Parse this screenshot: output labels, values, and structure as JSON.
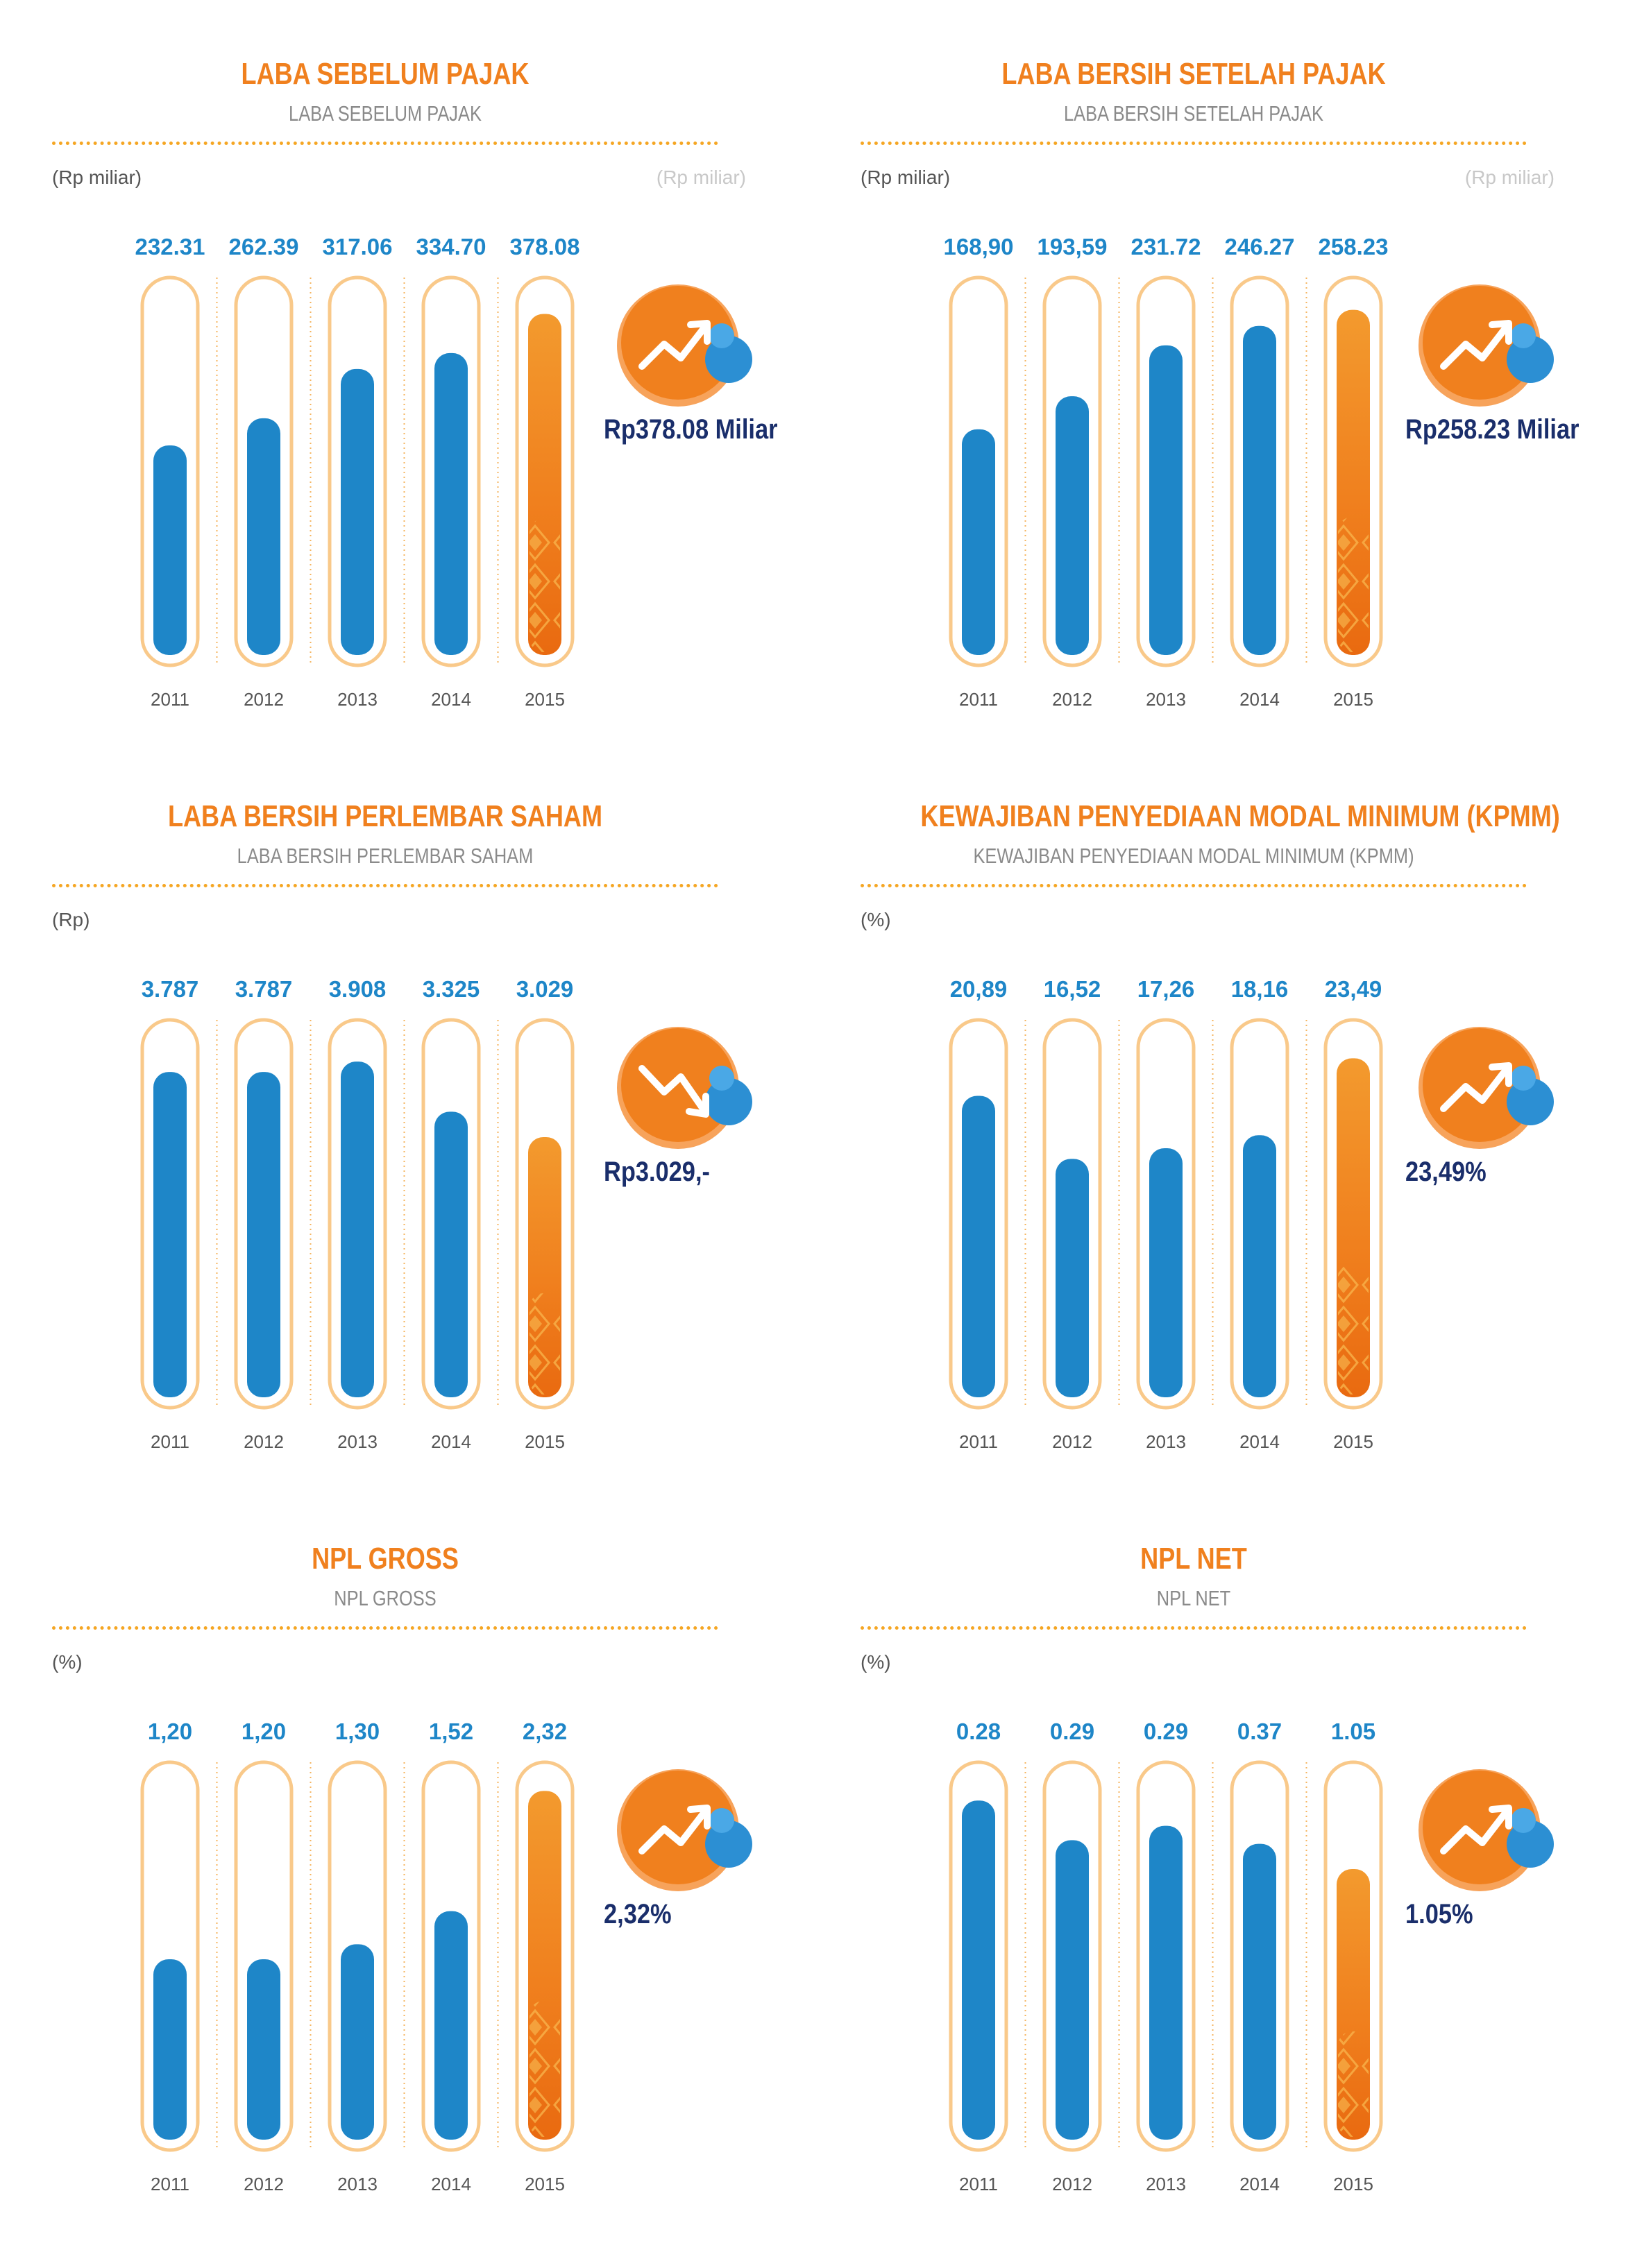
{
  "charts": [
    {
      "title": "LABA SEBELUM PAJAK",
      "subtitle": "LABA SEBELUM PAJAK",
      "unit_left": "(Rp miliar)",
      "unit_right": "(Rp miliar)",
      "callout": "Rp378.08 Miliar",
      "trend": "up",
      "chart_data": {
        "type": "bar",
        "title": "LABA SEBELUM PAJAK",
        "categories": [
          "2011",
          "2012",
          "2013",
          "2014",
          "2015"
        ],
        "values": [
          232.31,
          262.39,
          317.06,
          334.7,
          378.08
        ],
        "value_labels": [
          "232.31",
          "262.39",
          "317.06",
          "334.70",
          "378.08"
        ],
        "ylim": [
          0,
          400
        ],
        "highlight_index": 4
      }
    },
    {
      "title": "LABA BERSIH SETELAH PAJAK",
      "subtitle": "LABA BERSIH SETELAH PAJAK",
      "unit_left": "(Rp miliar)",
      "unit_right": "(Rp miliar)",
      "callout": "Rp258.23 Miliar",
      "trend": "up",
      "chart_data": {
        "type": "bar",
        "title": "LABA BERSIH SETELAH PAJAK",
        "categories": [
          "2011",
          "2012",
          "2013",
          "2014",
          "2015"
        ],
        "values": [
          168.9,
          193.59,
          231.72,
          246.27,
          258.23
        ],
        "value_labels": [
          "168,90",
          "193,59",
          "231.72",
          "246.27",
          "258.23"
        ],
        "ylim": [
          0,
          270
        ],
        "highlight_index": 4
      }
    },
    {
      "title": "LABA BERSIH PERLEMBAR SAHAM",
      "subtitle": "LABA BERSIH PERLEMBAR SAHAM",
      "unit_left": "(Rp)",
      "unit_right": "",
      "callout": "Rp3.029,-",
      "trend": "down",
      "chart_data": {
        "type": "bar",
        "title": "LABA BERSIH PERLEMBAR SAHAM",
        "categories": [
          "2011",
          "2012",
          "2013",
          "2014",
          "2015"
        ],
        "values": [
          3787,
          3787,
          3908,
          3325,
          3029
        ],
        "value_labels": [
          "3.787",
          "3.787",
          "3.908",
          "3.325",
          "3.029"
        ],
        "ylim": [
          0,
          4200
        ],
        "highlight_index": 4
      }
    },
    {
      "title": "KEWAJIBAN PENYEDIAAN MODAL MINIMUM (KPMM)",
      "subtitle": "KEWAJIBAN PENYEDIAAN MODAL MINIMUM (KPMM)",
      "unit_left": "(%)",
      "unit_right": "",
      "callout": "23,49%",
      "trend": "up",
      "chart_data": {
        "type": "bar",
        "title": "KEWAJIBAN PENYEDIAAN MODAL MINIMUM (KPMM)",
        "categories": [
          "2011",
          "2012",
          "2013",
          "2014",
          "2015"
        ],
        "values": [
          20.89,
          16.52,
          17.26,
          18.16,
          23.49
        ],
        "value_labels": [
          "20,89",
          "16,52",
          "17,26",
          "18,16",
          "23,49"
        ],
        "ylim": [
          0,
          25
        ],
        "highlight_index": 4
      }
    },
    {
      "title": "NPL GROSS",
      "subtitle": "NPL GROSS",
      "unit_left": "(%)",
      "unit_right": "",
      "callout": "2,32%",
      "trend": "up",
      "chart_data": {
        "type": "bar",
        "title": "NPL GROSS",
        "categories": [
          "2011",
          "2012",
          "2013",
          "2014",
          "2015"
        ],
        "values": [
          1.2,
          1.2,
          1.3,
          1.52,
          2.32
        ],
        "value_labels": [
          "1,20",
          "1,20",
          "1,30",
          "1,52",
          "2,32"
        ],
        "ylim": [
          0,
          2.4
        ],
        "highlight_index": 4
      }
    },
    {
      "title": "NPL NET",
      "subtitle": "NPL NET",
      "unit_left": "(%)",
      "unit_right": "",
      "callout": "1.05%",
      "trend": "up",
      "chart_data": {
        "type": "bar",
        "title": "NPL NET",
        "categories": [
          "2011",
          "2012",
          "2013",
          "2014",
          "2015"
        ],
        "values": [
          0.28,
          0.29,
          0.29,
          0.37,
          1.05
        ],
        "value_labels": [
          "0.28",
          "0.29",
          "0.29",
          "0.37",
          "1.05"
        ],
        "bar_fill_fractions": [
          0.94,
          0.83,
          0.87,
          0.82,
          0.75
        ],
        "highlight_index": 4
      }
    }
  ],
  "colors": {
    "title": "#F0801E",
    "subtitle": "#8A8A8A",
    "bar_blue": "#1E86C8",
    "bar_orange": "#F0801E",
    "value_label": "#1E86C8",
    "callout": "#1A2E6B"
  }
}
